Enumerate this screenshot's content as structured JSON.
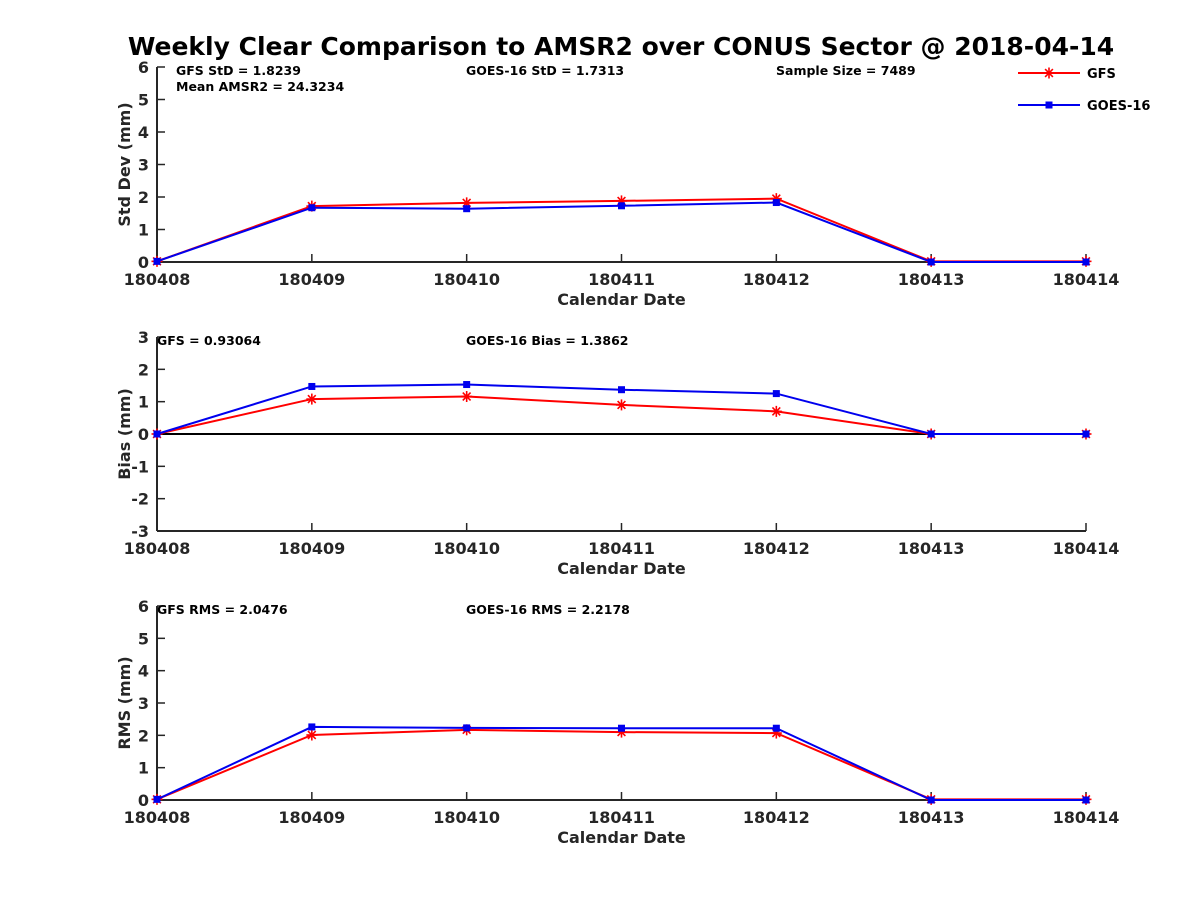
{
  "colors": {
    "gfs": "#ff0000",
    "goes": "#0000ee",
    "axis": "#262626"
  },
  "chart_data": {
    "type": "line",
    "title": "Weekly Clear Comparison to AMSR2 over CONUS Sector @ 2018-04-14",
    "legend": {
      "placement": "top-right",
      "entries": [
        {
          "label": "GFS",
          "marker": "asterisk",
          "color": "#ff0000"
        },
        {
          "label": "GOES-16",
          "marker": "square",
          "color": "#0000ee"
        }
      ]
    },
    "panels": [
      {
        "type": "line",
        "xlabel": "Calendar Date",
        "ylabel": "Std Dev (mm)",
        "ylim": [
          0,
          6
        ],
        "yticks": [
          "0",
          "1",
          "2",
          "3",
          "4",
          "5",
          "6"
        ],
        "x": [
          "180408",
          "180409",
          "180410",
          "180411",
          "180412",
          "180413",
          "180414"
        ],
        "annotations": [
          "GFS StD = 1.8239",
          "Mean AMSR2 = 24.3234",
          "GOES-16 StD = 1.7313",
          "Sample Size = 7489"
        ],
        "series": [
          {
            "name": "GFS",
            "values": [
              0.02,
              1.72,
              1.82,
              1.88,
              1.95,
              0.02,
              0.02
            ]
          },
          {
            "name": "GOES-16",
            "values": [
              0.02,
              1.67,
              1.64,
              1.73,
              1.83,
              0.0,
              0.0
            ]
          }
        ]
      },
      {
        "type": "line",
        "xlabel": "Calendar Date",
        "ylabel": "Bias (mm)",
        "ylim": [
          -3,
          3
        ],
        "yticks": [
          "-3",
          "-2",
          "-1",
          "0",
          "1",
          "2",
          "3"
        ],
        "x": [
          "180408",
          "180409",
          "180410",
          "180411",
          "180412",
          "180413",
          "180414"
        ],
        "annotations": [
          "GFS = 0.93064",
          "GOES-16 Bias  = 1.3862"
        ],
        "zero_line": true,
        "series": [
          {
            "name": "GFS",
            "values": [
              0.0,
              1.08,
              1.16,
              0.9,
              0.7,
              0.0,
              0.0
            ]
          },
          {
            "name": "GOES-16",
            "values": [
              0.0,
              1.47,
              1.53,
              1.37,
              1.25,
              0.0,
              0.0
            ]
          }
        ]
      },
      {
        "type": "line",
        "xlabel": "Calendar Date",
        "ylabel": "RMS (mm)",
        "ylim": [
          0,
          6
        ],
        "yticks": [
          "0",
          "1",
          "2",
          "3",
          "4",
          "5",
          "6"
        ],
        "x": [
          "180408",
          "180409",
          "180410",
          "180411",
          "180412",
          "180413",
          "180414"
        ],
        "annotations": [
          "GFS RMS = 2.0476",
          "GOES-16 RMS = 2.2178"
        ],
        "series": [
          {
            "name": "GFS",
            "values": [
              0.02,
              2.01,
              2.17,
              2.1,
              2.07,
              0.02,
              0.02
            ]
          },
          {
            "name": "GOES-16",
            "values": [
              0.02,
              2.26,
              2.23,
              2.22,
              2.22,
              0.0,
              0.0
            ]
          }
        ]
      }
    ]
  }
}
